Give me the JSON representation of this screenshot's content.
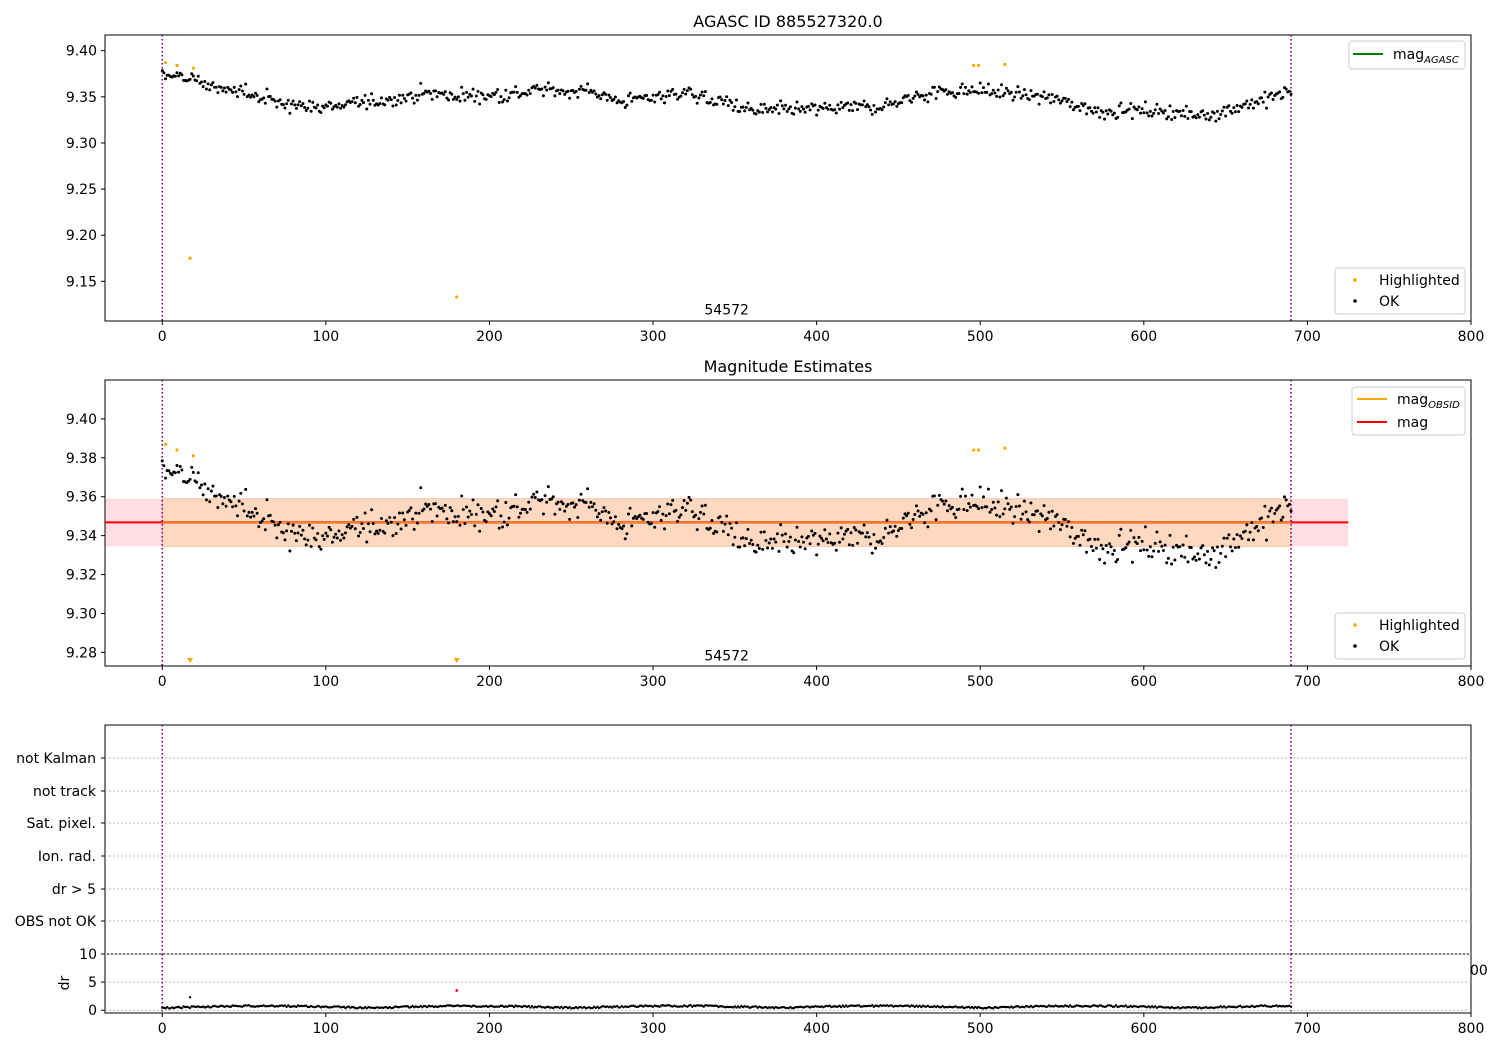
{
  "chart_data": [
    {
      "type": "scatter",
      "title": "AGASC ID 885527320.0",
      "xlim": [
        -35,
        800
      ],
      "ylim": [
        9.107,
        9.417
      ],
      "xticks": [
        0,
        100,
        200,
        300,
        400,
        500,
        600,
        700,
        800
      ],
      "yticks": [
        9.15,
        9.2,
        9.25,
        9.3,
        9.35,
        9.4
      ],
      "vlines": [
        0,
        690
      ],
      "annotation": {
        "text": "54572",
        "x": 345,
        "y": 9.115
      },
      "legend_top": [
        {
          "label": "mag",
          "sub": "AGASC",
          "color": "#008000",
          "kind": "line"
        }
      ],
      "legend_bottom": [
        {
          "label": "Highlighted",
          "color": "#ffa500",
          "kind": "point"
        },
        {
          "label": "OK",
          "color": "#000000",
          "kind": "point"
        }
      ],
      "series": [
        {
          "name": "OK",
          "color": "#000000",
          "description": "one point per observation, roughly 690 points spanning x 0-690, y mostly 9.32-9.38"
        },
        {
          "name": "Highlighted",
          "color": "#ffa500",
          "points": [
            [
              2,
              9.387
            ],
            [
              9,
              9.384
            ],
            [
              19,
              9.381
            ],
            [
              17,
              9.175
            ],
            [
              180,
              9.133
            ],
            [
              496,
              9.384
            ],
            [
              499,
              9.384
            ],
            [
              515,
              9.385
            ]
          ]
        }
      ]
    },
    {
      "type": "scatter",
      "title": "Magnitude Estimates",
      "xlim": [
        -35,
        800
      ],
      "ylim": [
        9.273,
        9.42
      ],
      "xticks": [
        0,
        100,
        200,
        300,
        400,
        500,
        600,
        700,
        800
      ],
      "yticks": [
        9.28,
        9.3,
        9.32,
        9.34,
        9.36,
        9.38,
        9.4
      ],
      "vlines": [
        0,
        690
      ],
      "annotation": {
        "text": "54572",
        "x": 345,
        "y": 9.2785
      },
      "mag": 9.3468,
      "band_outer": [
        -35,
        725,
        9.3345,
        9.359
      ],
      "band_inner": [
        0,
        690,
        9.3345,
        9.359
      ],
      "legend_top": [
        {
          "label": "mag",
          "sub": "OBSID",
          "color": "#ffa500",
          "kind": "line"
        },
        {
          "label": "mag",
          "sub": "",
          "color": "#ff0000",
          "kind": "line"
        }
      ],
      "legend_bottom": [
        {
          "label": "Highlighted",
          "color": "#ffa500",
          "kind": "point"
        },
        {
          "label": "OK",
          "color": "#000000",
          "kind": "point"
        }
      ],
      "series": [
        {
          "name": "OK",
          "color": "#000000"
        },
        {
          "name": "Highlighted",
          "color": "#ffa500",
          "points": [
            [
              2,
              9.387
            ],
            [
              9,
              9.384
            ],
            [
              19,
              9.381
            ],
            [
              496,
              9.384
            ],
            [
              499,
              9.384
            ],
            [
              515,
              9.385
            ]
          ],
          "offscale_markers": [
            17,
            180
          ]
        }
      ]
    },
    {
      "type": "scatter",
      "xlim": [
        -35,
        800
      ],
      "categories": [
        "not Kalman",
        "not track",
        "Sat. pixel.",
        "Ion. rad.",
        "dr > 5",
        "OBS not OK"
      ],
      "vlines": [
        0,
        690
      ]
    },
    {
      "type": "scatter",
      "xlim": [
        -35,
        800
      ],
      "ylim": [
        -0.5,
        10
      ],
      "ylabel": "dr",
      "xticks": [
        0,
        100,
        200,
        300,
        400,
        500,
        600,
        700,
        800
      ],
      "yticks": [
        0,
        5,
        10
      ],
      "vlines": [
        0,
        690
      ],
      "overflow_label": "00",
      "series": [
        {
          "name": "OK",
          "color": "#000000",
          "description": "dr values mostly 0.1-1.0 for x 0-690"
        },
        {
          "name": "Highlighted",
          "color": "#ff0000",
          "points": [
            [
              180,
              3.5
            ]
          ]
        }
      ]
    }
  ]
}
